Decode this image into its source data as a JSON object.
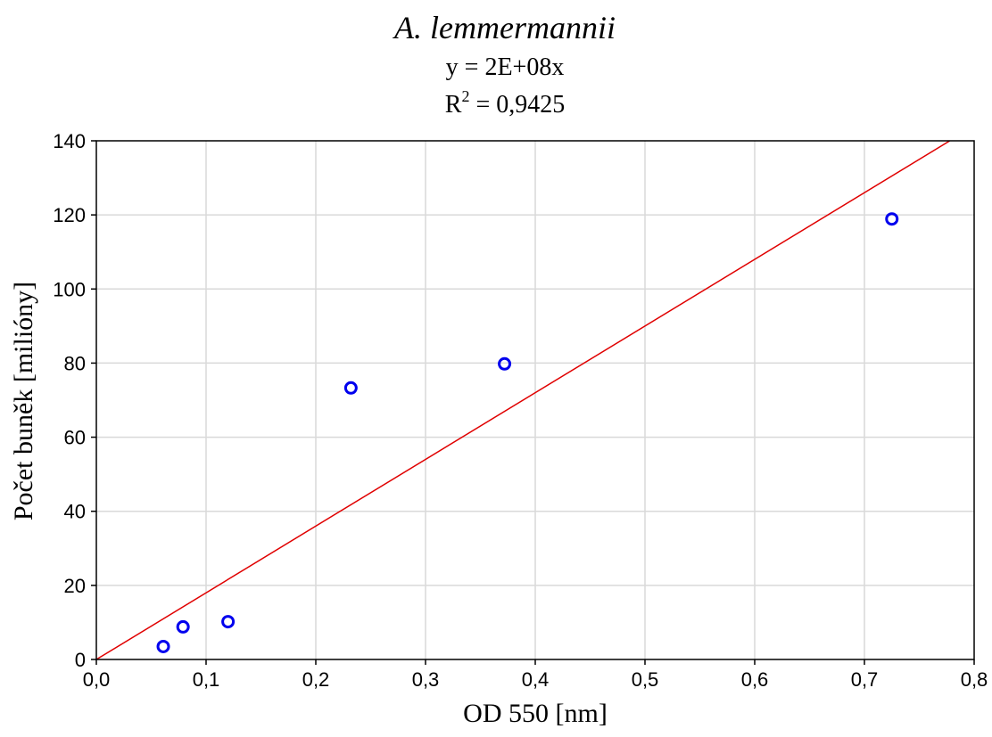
{
  "chart_data": {
    "type": "scatter",
    "title": "A. lemmermannii",
    "equation": "y = 2E+08x",
    "r2_prefix": "R",
    "r2_sup": "2",
    "r2_value": " = 0,9425",
    "xlabel": "OD 550 [nm]",
    "ylabel": "Počet buněk [milióny]",
    "xlim": [
      0,
      0.8
    ],
    "ylim": [
      0,
      140
    ],
    "xticks": [
      0,
      0.1,
      0.2,
      0.3,
      0.4,
      0.5,
      0.6,
      0.7,
      0.8
    ],
    "xtick_labels": [
      "0,0",
      "0,1",
      "0,2",
      "0,3",
      "0,4",
      "0,5",
      "0,6",
      "0,7",
      "0,8"
    ],
    "yticks": [
      0,
      20,
      40,
      60,
      80,
      100,
      120,
      140
    ],
    "ytick_labels": [
      "0",
      "20",
      "40",
      "60",
      "80",
      "100",
      "120",
      "140"
    ],
    "grid": true,
    "points": [
      {
        "x": 0.061,
        "y": 3.5
      },
      {
        "x": 0.079,
        "y": 8.8
      },
      {
        "x": 0.12,
        "y": 10.2
      },
      {
        "x": 0.232,
        "y": 73.3
      },
      {
        "x": 0.372,
        "y": 79.8
      },
      {
        "x": 0.725,
        "y": 118.9
      }
    ],
    "trendline": {
      "slope": 180,
      "intercept": 0
    },
    "colors": {
      "points": "#0000ee",
      "trendline": "#e00000",
      "grid": "#d9d9d9",
      "axis": "#000000"
    }
  }
}
